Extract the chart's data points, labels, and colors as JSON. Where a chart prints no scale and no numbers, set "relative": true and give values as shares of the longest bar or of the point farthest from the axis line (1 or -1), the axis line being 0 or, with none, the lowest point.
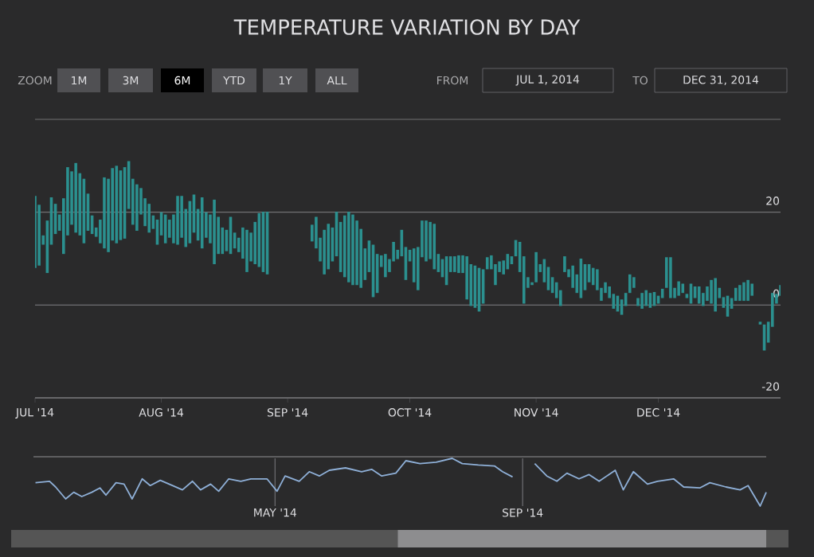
{
  "chart_data": [
    {
      "type": "bar",
      "title": "TEMPERATURE VARIATION BY DAY",
      "color": "#2b908f",
      "grid": "y",
      "annotations": [
        "ZOOM",
        "1M",
        "3M",
        "6M",
        "YTD",
        "1Y",
        "ALL",
        "FROM",
        "JUL 1, 2014",
        "TO",
        "DEC 31, 2014"
      ],
      "xlim": [
        "2014-07-01",
        "2014-12-31"
      ],
      "ylim": [
        -20,
        40
      ],
      "xticks": [
        {
          "value": "2014-07-01",
          "label": "JUL '14"
        },
        {
          "value": "2014-08-01",
          "label": "AUG '14"
        },
        {
          "value": "2014-09-01",
          "label": "SEP '14"
        },
        {
          "value": "2014-10-01",
          "label": "OCT '14"
        },
        {
          "value": "2014-11-01",
          "label": "NOV '14"
        },
        {
          "value": "2014-12-01",
          "label": "DEC '14"
        }
      ],
      "yticks": [
        -20,
        0,
        20,
        {
          "value": 40,
          "label": null
        }
      ],
      "x": [
        "2014-07-01",
        "2014-07-02",
        "2014-07-03",
        "2014-07-04",
        "2014-07-05",
        "2014-07-06",
        "2014-07-07",
        "2014-07-08",
        "2014-07-09",
        "2014-07-10",
        "2014-07-11",
        "2014-07-12",
        "2014-07-13",
        "2014-07-14",
        "2014-07-15",
        "2014-07-16",
        "2014-07-17",
        "2014-07-18",
        "2014-07-19",
        "2014-07-20",
        "2014-07-21",
        "2014-07-22",
        "2014-07-23",
        "2014-07-24",
        "2014-07-25",
        "2014-07-26",
        "2014-07-27",
        "2014-07-28",
        "2014-07-29",
        "2014-07-30",
        "2014-07-31",
        "2014-08-01",
        "2014-08-02",
        "2014-08-03",
        "2014-08-04",
        "2014-08-05",
        "2014-08-06",
        "2014-08-07",
        "2014-08-08",
        "2014-08-09",
        "2014-08-10",
        "2014-08-11",
        "2014-08-12",
        "2014-08-13",
        "2014-08-14",
        "2014-08-15",
        "2014-08-16",
        "2014-08-17",
        "2014-08-18",
        "2014-08-19",
        "2014-08-20",
        "2014-08-21",
        "2014-08-22",
        "2014-08-23",
        "2014-08-24",
        "2014-08-25",
        "2014-08-26",
        "2014-08-27",
        "2014-08-28",
        "2014-08-29",
        "2014-08-30",
        "2014-08-31",
        "2014-09-01",
        "2014-09-02",
        "2014-09-03",
        "2014-09-04",
        "2014-09-05",
        "2014-09-06",
        "2014-09-07",
        "2014-09-08",
        "2014-09-09",
        "2014-09-10",
        "2014-09-11",
        "2014-09-12",
        "2014-09-13",
        "2014-09-14",
        "2014-09-15",
        "2014-09-16",
        "2014-09-17",
        "2014-09-18",
        "2014-09-19",
        "2014-09-20",
        "2014-09-21",
        "2014-09-22",
        "2014-09-23",
        "2014-09-24",
        "2014-09-25",
        "2014-09-26",
        "2014-09-27",
        "2014-09-28",
        "2014-09-29",
        "2014-09-30",
        "2014-10-01",
        "2014-10-02",
        "2014-10-03",
        "2014-10-04",
        "2014-10-05",
        "2014-10-06",
        "2014-10-07",
        "2014-10-08",
        "2014-10-09",
        "2014-10-10",
        "2014-10-11",
        "2014-10-12",
        "2014-10-13",
        "2014-10-14",
        "2014-10-15",
        "2014-10-16",
        "2014-10-17",
        "2014-10-18",
        "2014-10-19",
        "2014-10-20",
        "2014-10-21",
        "2014-10-22",
        "2014-10-23",
        "2014-10-24",
        "2014-10-25",
        "2014-10-26",
        "2014-10-27",
        "2014-10-28",
        "2014-10-29",
        "2014-10-30",
        "2014-10-31",
        "2014-11-01",
        "2014-11-02",
        "2014-11-03",
        "2014-11-04",
        "2014-11-05",
        "2014-11-06",
        "2014-11-07",
        "2014-11-08",
        "2014-11-09",
        "2014-11-10",
        "2014-11-11",
        "2014-11-12",
        "2014-11-13",
        "2014-11-14",
        "2014-11-15",
        "2014-11-16",
        "2014-11-17",
        "2014-11-18",
        "2014-11-19",
        "2014-11-20",
        "2014-11-21",
        "2014-11-22",
        "2014-11-23",
        "2014-11-24",
        "2014-11-25",
        "2014-11-26",
        "2014-11-27",
        "2014-11-28",
        "2014-11-29",
        "2014-11-30",
        "2014-12-01",
        "2014-12-02",
        "2014-12-03",
        "2014-12-04",
        "2014-12-05",
        "2014-12-06",
        "2014-12-07",
        "2014-12-08",
        "2014-12-09",
        "2014-12-10",
        "2014-12-11",
        "2014-12-12",
        "2014-12-13",
        "2014-12-14",
        "2014-12-15",
        "2014-12-16",
        "2014-12-17",
        "2014-12-18",
        "2014-12-19",
        "2014-12-20",
        "2014-12-21",
        "2014-12-22",
        "2014-12-23",
        "2014-12-24",
        "2014-12-25",
        "2014-12-26",
        "2014-12-27",
        "2014-12-28",
        "2014-12-29",
        "2014-12-30",
        "2014-12-31"
      ],
      "values": [
        15.5,
        13.1,
        2,
        11.3,
        10.2,
        6.5,
        3.5,
        12,
        14.7,
        11.5,
        15,
        13.4,
        13.9,
        8,
        4,
        2,
        5.1,
        15.3,
        15.8,
        15.6,
        16.7,
        15,
        15.4,
        10.3,
        9.9,
        10,
        5.7,
        6,
        6.2,
        2.9,
        5.4,
        5,
        6.2,
        3.9,
        6.2,
        10.5,
        9,
        8.2,
        9.1,
        8.2,
        6.8,
        11,
        5.5,
        6.2,
        13.9,
        8,
        5.7,
        4.6,
        8,
        3.4,
        3.1,
        6.7,
        9.1,
        6.2,
        9.1,
        11.6,
        13,
        13.5,
        null,
        null,
        null,
        null,
        null,
        null,
        null,
        null,
        null,
        null,
        3.6,
        6.8,
        5.1,
        9.6,
        9.8,
        7.3,
        9.6,
        10.8,
        13.3,
        15.2,
        15.2,
        13.9,
        12.7,
        6.8,
        6.8,
        11.3,
        8.4,
        2.5,
        5,
        2.8,
        4.2,
        2,
        5.7,
        7.1,
        2.5,
        7.3,
        9.3,
        7.9,
        8.8,
        8,
        9.8,
        3.9,
        3.9,
        6.2,
        3.4,
        3.4,
        3.8,
        3.8,
        9.3,
        9,
        9.1,
        9.4,
        7.4,
        2.6,
        3,
        4.5,
        2.3,
        3,
        3.3,
        1.7,
        3.5,
        6.5,
        10.2,
        2.3,
        0.6,
        6.5,
        1.7,
        5,
        5,
        3.4,
        3.4,
        3.4,
        3.4,
        1.7,
        4.8,
        4,
        8.5,
        5.6,
        3.9,
        3.7,
        4.5,
        2.8,
        2.3,
        2.5,
        3.2,
        3.4,
        3.3,
        2.8,
        4,
        2.3,
        1.7,
        3.4,
        3.4,
        3.2,
        3,
        1.7,
        2,
        6.6,
        8.8,
        2.2,
        3.1,
        2,
        0.9,
        4.3,
        2.5,
        3.7,
        2.8,
        3.1,
        5.1,
        7.2,
        2.2,
        2.3,
        4.5,
        2.3,
        2.8,
        3.4,
        4,
        4.5,
        2.6,
        null,
        0.6,
        5.6,
        4.5,
        7.3,
        2.1,
        2.3
      ],
      "base": [
        8,
        8.5,
        13,
        6.9,
        13,
        15.3,
        16,
        11,
        15,
        17.3,
        15.6,
        15,
        13.3,
        16,
        15.3,
        14.7,
        13.3,
        12.2,
        11.4,
        13.9,
        13.3,
        14,
        14.3,
        20.7,
        17.3,
        16,
        19.5,
        17,
        15.6,
        16.4,
        13,
        15,
        13.3,
        14.5,
        13.3,
        13,
        14.5,
        12.5,
        13.3,
        15.6,
        13.9,
        12.2,
        14.5,
        13.3,
        8.8,
        11,
        11,
        11.6,
        11,
        12.2,
        11.4,
        10,
        7.1,
        9.4,
        8.8,
        8.2,
        7.1,
        6.6,
        null,
        null,
        null,
        null,
        null,
        null,
        null,
        null,
        null,
        null,
        13.7,
        12.2,
        9.4,
        6.6,
        7.7,
        9.4,
        10.5,
        7.1,
        6,
        4.9,
        4.3,
        4.3,
        3.7,
        5.4,
        7.1,
        1.7,
        2.6,
        8.2,
        6,
        7.1,
        9.4,
        9.9,
        10.5,
        5.4,
        9.4,
        4.9,
        3.2,
        10.3,
        9.4,
        9.9,
        7.7,
        7.1,
        6,
        4.3,
        7.1,
        7.1,
        6.9,
        6.9,
        1.2,
        -0.2,
        -0.6,
        -1.4,
        0.3,
        7.7,
        7.7,
        4.3,
        7.1,
        6.6,
        7.7,
        8.8,
        10.5,
        7.1,
        0.3,
        3.7,
        4.3,
        4.9,
        7.1,
        4.9,
        3.2,
        2.6,
        1.5,
        -0.2,
        7.1,
        6,
        3.7,
        2.6,
        1.5,
        3.2,
        4.9,
        4.3,
        3.2,
        0.9,
        2.6,
        1.5,
        -0.8,
        -1.4,
        -2.1,
        -0.2,
        2.6,
        3.7,
        -0.2,
        -0.8,
        -0.2,
        -0.6,
        -0.2,
        0.3,
        1.5,
        3.7,
        1.5,
        1.5,
        2,
        2.6,
        1.5,
        0.3,
        1.5,
        0.3,
        -0.2,
        0.9,
        0.3,
        -1.4,
        1.5,
        -0.6,
        -2.5,
        -0.8,
        0.9,
        0.9,
        0.9,
        0.9,
        2,
        null,
        -4.2,
        -9.8,
        -8.1,
        -4.7,
        0.3,
        2
      ]
    },
    {
      "type": "line",
      "relative": true,
      "color": "#8fb0d8",
      "grid": "x",
      "tick_labels": "x",
      "xlim": [
        "2014-01-01",
        "2014-12-31"
      ],
      "xticks": [
        {
          "value": "2014-05-01",
          "label": "MAY '14"
        },
        {
          "value": "2014-09-01",
          "label": "SEP '14"
        }
      ],
      "x": [
        "2014-01-02",
        "2014-01-09",
        "2014-01-12",
        "2014-01-17",
        "2014-01-21",
        "2014-01-25",
        "2014-01-30",
        "2014-02-03",
        "2014-02-06",
        "2014-02-11",
        "2014-02-15",
        "2014-02-19",
        "2014-02-24",
        "2014-02-28",
        "2014-03-05",
        "2014-03-11",
        "2014-03-16",
        "2014-03-21",
        "2014-03-25",
        "2014-03-30",
        "2014-04-03",
        "2014-04-08",
        "2014-04-14",
        "2014-04-19",
        "2014-04-27",
        "2014-05-02",
        "2014-05-06",
        "2014-05-13",
        "2014-05-18",
        "2014-05-23",
        "2014-05-28",
        "2014-06-05",
        "2014-06-13",
        "2014-06-18",
        "2014-06-23",
        "2014-06-30",
        "2014-07-05",
        "2014-07-12",
        "2014-07-20",
        "2014-07-28",
        "2014-08-02",
        "2014-08-10",
        "2014-08-18",
        "2014-08-22",
        "2014-08-27",
        "2014-09-01",
        "2014-09-07",
        "2014-09-13",
        "2014-09-18",
        "2014-09-23",
        "2014-09-29",
        "2014-10-04",
        "2014-10-09",
        "2014-10-17",
        "2014-10-21",
        "2014-10-26",
        "2014-11-02",
        "2014-11-07",
        "2014-11-15",
        "2014-11-20",
        "2014-11-28",
        "2014-12-03",
        "2014-12-11",
        "2014-12-18",
        "2014-12-22",
        "2014-12-28",
        "2014-12-31"
      ],
      "values": [
        0.49,
        0.52,
        0.4,
        0.15,
        0.29,
        0.2,
        0.29,
        0.38,
        0.23,
        0.49,
        0.46,
        0.15,
        0.57,
        0.43,
        0.54,
        0.43,
        0.34,
        0.52,
        0.34,
        0.46,
        0.31,
        0.57,
        0.52,
        0.57,
        0.57,
        0.31,
        0.63,
        0.52,
        0.72,
        0.63,
        0.75,
        0.8,
        0.72,
        0.77,
        0.63,
        0.69,
        0.95,
        0.89,
        0.92,
        1,
        0.89,
        0.86,
        0.84,
        0.72,
        0.61,
        null,
        0.89,
        0.63,
        0.52,
        0.69,
        0.57,
        0.66,
        0.52,
        0.75,
        0.34,
        0.72,
        0.46,
        0.52,
        0.57,
        0.4,
        0.38,
        0.49,
        0.4,
        0.34,
        0.43,
        0,
        0.29
      ]
    }
  ]
}
